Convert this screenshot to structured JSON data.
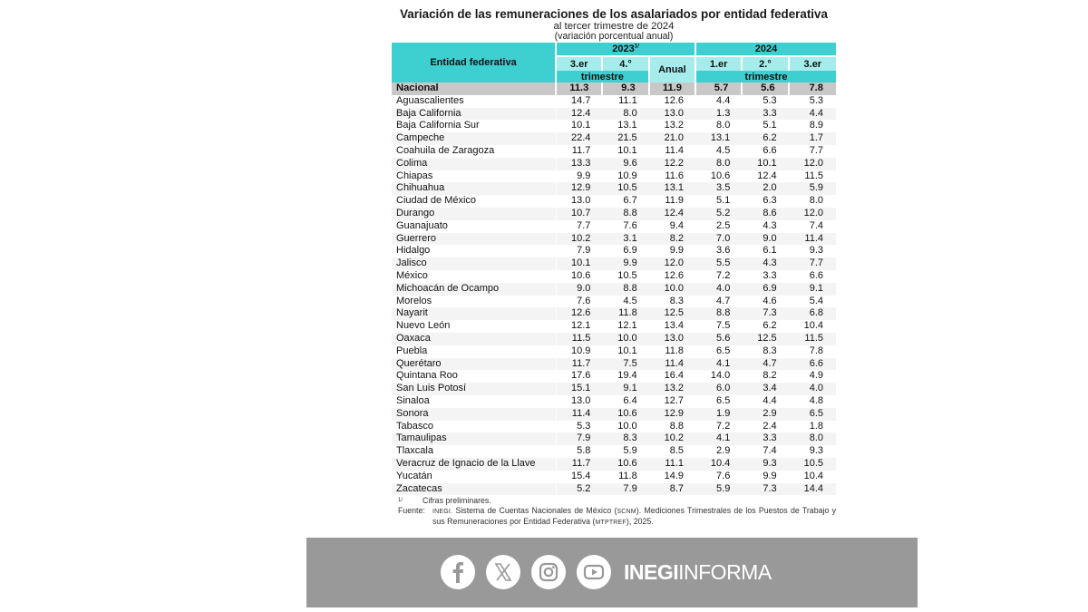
{
  "document": {
    "title": "Variación de las remuneraciones de los asalariados por entidad federativa",
    "subtitle": "al tercer trimestre de 2024",
    "subtitle2": "(variación porcentual anual)"
  },
  "table": {
    "header": {
      "entity": "Entidad federativa",
      "year_2023": "2023",
      "year_2023_note": "1/",
      "year_2024": "2024",
      "q2023": [
        "3.er",
        "4.°"
      ],
      "anual": "Anual",
      "q2024": [
        "1.er",
        "2.°",
        "3.er"
      ],
      "trimestre": "trimestre"
    },
    "national": {
      "name": "Nacional",
      "values": [
        "11.3",
        "9.3",
        "11.9",
        "5.7",
        "5.6",
        "7.8"
      ]
    },
    "rows": [
      {
        "name": "Aguascalientes",
        "values": [
          "14.7",
          "11.1",
          "12.6",
          "4.4",
          "5.3",
          "5.3"
        ]
      },
      {
        "name": "Baja California",
        "values": [
          "12.4",
          "8.0",
          "13.0",
          "1.3",
          "3.3",
          "4.4"
        ]
      },
      {
        "name": "Baja California Sur",
        "values": [
          "10.1",
          "13.1",
          "13.2",
          "8.0",
          "5.1",
          "8.9"
        ]
      },
      {
        "name": "Campeche",
        "values": [
          "22.4",
          "21.5",
          "21.0",
          "13.1",
          "6.2",
          "1.7"
        ]
      },
      {
        "name": "Coahuila de Zaragoza",
        "values": [
          "11.7",
          "10.1",
          "11.4",
          "4.5",
          "6.6",
          "7.7"
        ]
      },
      {
        "name": "Colima",
        "values": [
          "13.3",
          "9.6",
          "12.2",
          "8.0",
          "10.1",
          "12.0"
        ]
      },
      {
        "name": "Chiapas",
        "values": [
          "9.9",
          "10.9",
          "11.6",
          "10.6",
          "12.4",
          "11.5"
        ]
      },
      {
        "name": "Chihuahua",
        "values": [
          "12.9",
          "10.5",
          "13.1",
          "3.5",
          "2.0",
          "5.9"
        ]
      },
      {
        "name": "Ciudad de México",
        "values": [
          "13.0",
          "6.7",
          "11.9",
          "5.1",
          "6.3",
          "8.0"
        ]
      },
      {
        "name": "Durango",
        "values": [
          "10.7",
          "8.8",
          "12.4",
          "5.2",
          "8.6",
          "12.0"
        ]
      },
      {
        "name": "Guanajuato",
        "values": [
          "7.7",
          "7.6",
          "9.4",
          "2.5",
          "4.3",
          "7.4"
        ]
      },
      {
        "name": "Guerrero",
        "values": [
          "10.2",
          "3.1",
          "8.2",
          "7.0",
          "9.0",
          "11.4"
        ]
      },
      {
        "name": "Hidalgo",
        "values": [
          "7.9",
          "6.9",
          "9.9",
          "3.6",
          "6.1",
          "9.3"
        ]
      },
      {
        "name": "Jalisco",
        "values": [
          "10.1",
          "9.9",
          "12.0",
          "5.5",
          "4.3",
          "7.7"
        ]
      },
      {
        "name": "México",
        "values": [
          "10.6",
          "10.5",
          "12.6",
          "7.2",
          "3.3",
          "6.6"
        ]
      },
      {
        "name": "Michoacán de Ocampo",
        "values": [
          "9.0",
          "8.8",
          "10.0",
          "4.0",
          "6.9",
          "9.1"
        ]
      },
      {
        "name": "Morelos",
        "values": [
          "7.6",
          "4.5",
          "8.3",
          "4.7",
          "4.6",
          "5.4"
        ]
      },
      {
        "name": "Nayarit",
        "values": [
          "12.6",
          "11.8",
          "12.5",
          "8.8",
          "7.3",
          "6.8"
        ]
      },
      {
        "name": "Nuevo León",
        "values": [
          "12.1",
          "12.1",
          "13.4",
          "7.5",
          "6.2",
          "10.4"
        ]
      },
      {
        "name": "Oaxaca",
        "values": [
          "11.5",
          "10.0",
          "13.0",
          "5.6",
          "12.5",
          "11.5"
        ]
      },
      {
        "name": "Puebla",
        "values": [
          "10.9",
          "10.1",
          "11.8",
          "6.5",
          "8.3",
          "7.8"
        ]
      },
      {
        "name": "Querétaro",
        "values": [
          "11.7",
          "7.5",
          "11.4",
          "4.1",
          "4.7",
          "6.6"
        ]
      },
      {
        "name": "Quintana Roo",
        "values": [
          "17.6",
          "19.4",
          "16.4",
          "14.0",
          "8.2",
          "4.9"
        ]
      },
      {
        "name": "San Luis Potosí",
        "values": [
          "15.1",
          "9.1",
          "13.2",
          "6.0",
          "3.4",
          "4.0"
        ]
      },
      {
        "name": "Sinaloa",
        "values": [
          "13.0",
          "6.4",
          "12.7",
          "6.5",
          "4.4",
          "4.8"
        ]
      },
      {
        "name": "Sonora",
        "values": [
          "11.4",
          "10.6",
          "12.9",
          "1.9",
          "2.9",
          "6.5"
        ]
      },
      {
        "name": "Tabasco",
        "values": [
          "5.3",
          "10.0",
          "8.8",
          "7.2",
          "2.4",
          "1.8"
        ]
      },
      {
        "name": "Tamaulipas",
        "values": [
          "7.9",
          "8.3",
          "10.2",
          "4.1",
          "3.3",
          "8.0"
        ]
      },
      {
        "name": "Tlaxcala",
        "values": [
          "5.8",
          "5.9",
          "8.5",
          "2.9",
          "7.4",
          "9.3"
        ]
      },
      {
        "name": "Veracruz de Ignacio de la Llave",
        "values": [
          "11.7",
          "10.6",
          "11.1",
          "10.4",
          "9.3",
          "10.5"
        ]
      },
      {
        "name": "Yucatán",
        "values": [
          "15.4",
          "11.8",
          "14.9",
          "7.6",
          "9.9",
          "10.4"
        ]
      },
      {
        "name": "Zacatecas",
        "values": [
          "5.2",
          "7.9",
          "8.7",
          "5.9",
          "7.3",
          "14.4"
        ]
      }
    ]
  },
  "notes": {
    "mark": "1/",
    "preliminary": "Cifras preliminares.",
    "source_label": "Fuente:",
    "source_parts": [
      "INEGI.",
      " Sistema de Cuentas Nacionales de México (",
      "SCNM",
      "). Mediciones Trimestrales de los Puestos de Trabajo y sus Remuneraciones por Entidad Federativa (",
      "MTPTREF",
      "), 2025."
    ]
  },
  "banner": {
    "brand_bold": "INEGI",
    "brand_light": "INFORMA",
    "social_icons": [
      "facebook-icon",
      "x-icon",
      "instagram-icon",
      "youtube-icon"
    ],
    "background": "#999999"
  },
  "colors": {
    "header_teal": "#3ecfd0",
    "header_light_teal": "#a6ecec",
    "national_row_gray": "#c8c8c8"
  }
}
